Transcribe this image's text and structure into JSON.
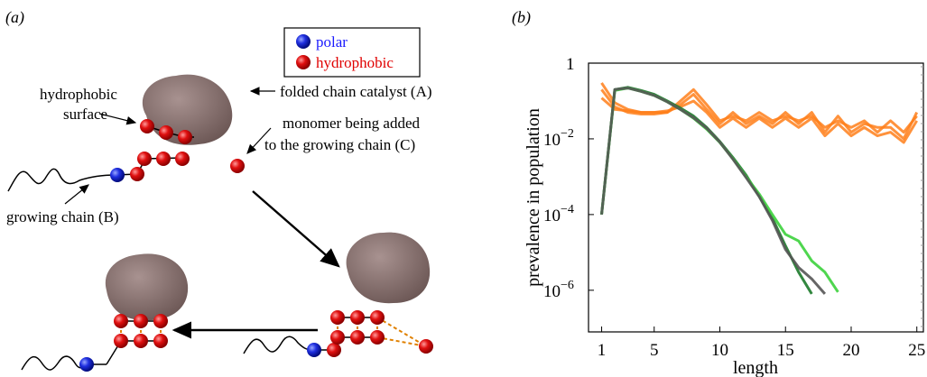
{
  "panel_a": {
    "label": "(a)",
    "legend": {
      "polar": "polar",
      "hydrophobic": "hydrophobic"
    },
    "labels": {
      "surface_line1": "hydrophobic",
      "surface_line2": "surface",
      "catalyst": "folded chain catalyst (A)",
      "monomer_line1": "monomer being added",
      "monomer_line2": "to the growing chain (C)",
      "growing": "growing chain (B)"
    },
    "colors": {
      "polar": "#1f2fe0",
      "hydrophobic": "#e01010",
      "catalyst": "#8a7270"
    }
  },
  "panel_b": {
    "label": "(b)",
    "chart_data": {
      "type": "line",
      "xlabel": "length",
      "ylabel": "prevalence in population",
      "xlim": [
        0,
        25.5
      ],
      "ylim_log10": [
        -7.1,
        0.0
      ],
      "x_ticks": [
        "1",
        "5",
        "10",
        "15",
        "20",
        "25"
      ],
      "y_ticks": [
        {
          "base": "1",
          "exp": ""
        },
        {
          "base": "10",
          "exp": "−2"
        },
        {
          "base": "10",
          "exp": "−4"
        },
        {
          "base": "10",
          "exp": "−6"
        }
      ],
      "series": [
        {
          "color": "#ff7f1a",
          "x": [
            1,
            2,
            3,
            4,
            5,
            6,
            7,
            8,
            9,
            10,
            11,
            12,
            13,
            14,
            15,
            16,
            17,
            18,
            19,
            20,
            21,
            22,
            23,
            24,
            25
          ],
          "y": [
            0.3,
            0.09,
            0.06,
            0.05,
            0.05,
            0.05,
            0.1,
            0.2,
            0.08,
            0.03,
            0.04,
            0.03,
            0.05,
            0.03,
            0.04,
            0.03,
            0.04,
            0.02,
            0.03,
            0.02,
            0.03,
            0.015,
            0.03,
            0.015,
            0.04
          ]
        },
        {
          "color": "#ff7f1a",
          "x": [
            1,
            2,
            3,
            4,
            5,
            6,
            7,
            8,
            9,
            10,
            11,
            12,
            13,
            14,
            15,
            16,
            17,
            18,
            19,
            20,
            21,
            22,
            23,
            24,
            25
          ],
          "y": [
            0.2,
            0.07,
            0.05,
            0.045,
            0.045,
            0.05,
            0.08,
            0.15,
            0.06,
            0.025,
            0.05,
            0.025,
            0.04,
            0.025,
            0.05,
            0.025,
            0.05,
            0.015,
            0.04,
            0.015,
            0.025,
            0.02,
            0.02,
            0.01,
            0.05
          ]
        },
        {
          "color": "#ff7f1a",
          "x": [
            1,
            2,
            3,
            4,
            5,
            6,
            7,
            8,
            9,
            10,
            11,
            12,
            13,
            14,
            15,
            16,
            17,
            18,
            19,
            20,
            21,
            22,
            23,
            24,
            25
          ],
          "y": [
            0.12,
            0.06,
            0.055,
            0.05,
            0.05,
            0.055,
            0.07,
            0.1,
            0.05,
            0.02,
            0.035,
            0.02,
            0.035,
            0.02,
            0.035,
            0.02,
            0.035,
            0.012,
            0.025,
            0.012,
            0.02,
            0.012,
            0.015,
            0.008,
            0.03
          ]
        },
        {
          "color": "#1c7a2a",
          "x": [
            1,
            2,
            3,
            4,
            5,
            6,
            7,
            8,
            9,
            10,
            11,
            12,
            13,
            14,
            15,
            16,
            17
          ],
          "y": [
            0.0001,
            0.2,
            0.23,
            0.19,
            0.15,
            0.1,
            0.065,
            0.04,
            0.02,
            0.0085,
            0.0032,
            0.0011,
            0.0003,
            8e-05,
            1.5e-05,
            3e-06,
            8e-07
          ]
        },
        {
          "color": "#3cd23c",
          "x": [
            1,
            2,
            3,
            4,
            5,
            6,
            7,
            8,
            9,
            10,
            11,
            12,
            13,
            14,
            15,
            16,
            17,
            18,
            19
          ],
          "y": [
            0.0001,
            0.19,
            0.22,
            0.18,
            0.14,
            0.095,
            0.06,
            0.035,
            0.018,
            0.008,
            0.003,
            0.001,
            0.00035,
            0.0001,
            3e-05,
            2e-05,
            6e-06,
            3e-06,
            9e-07
          ]
        },
        {
          "color": "#555555",
          "x": [
            1,
            2,
            3,
            4,
            5,
            6,
            7,
            8,
            9,
            10,
            11,
            12,
            13,
            14,
            15,
            16,
            17,
            18
          ],
          "y": [
            0.0001,
            0.2,
            0.22,
            0.18,
            0.14,
            0.095,
            0.06,
            0.036,
            0.019,
            0.0082,
            0.0029,
            0.00095,
            0.0003,
            7e-05,
            1.2e-05,
            4e-06,
            2e-06,
            8e-07
          ]
        }
      ]
    }
  }
}
